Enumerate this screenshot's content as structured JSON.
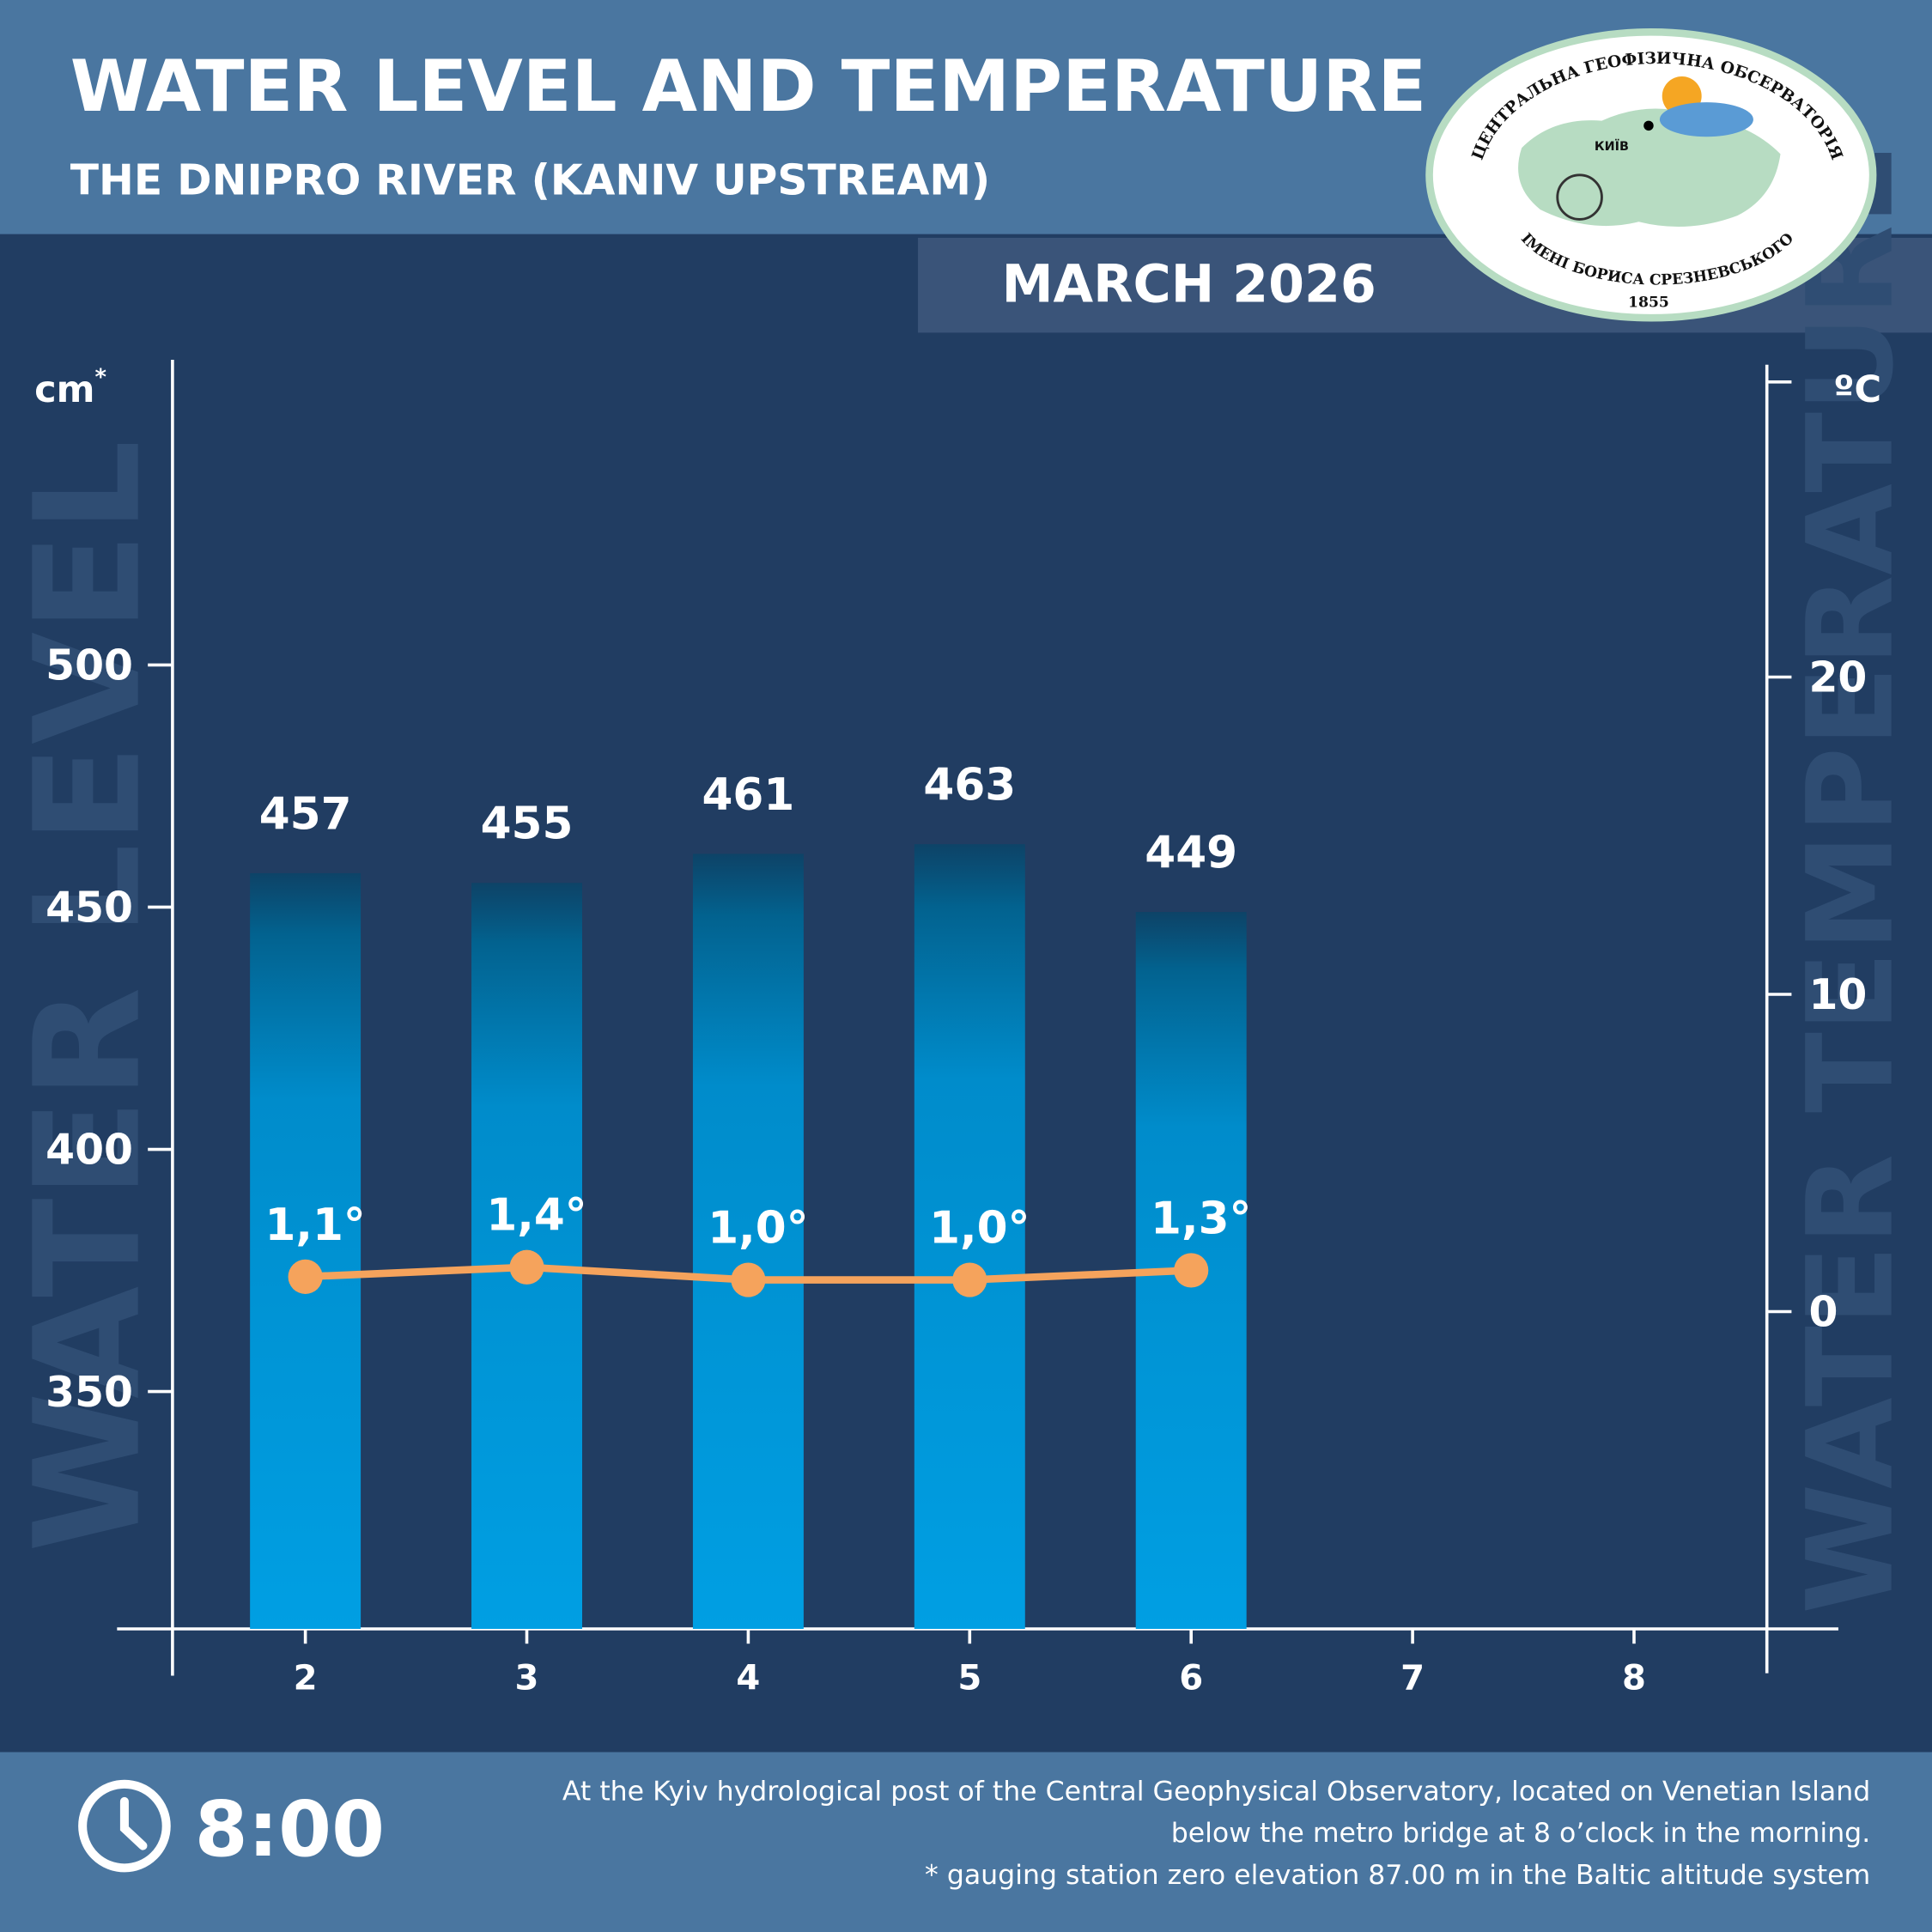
{
  "chart_data": {
    "type": "bar_line",
    "title": "WATER LEVEL AND TEMPERATURE",
    "subtitle": "THE DNIPRO RIVER (KANIV UPSTREAM)",
    "period": "MARCH 2026",
    "y_unit": "cm",
    "y_unit_note": "*",
    "y2_unit": "ºC",
    "y_axis_label": "WATER LEVEL",
    "y2_axis_label": "WATER TEMPERATURE",
    "x": [
      2,
      3,
      4,
      5,
      6,
      7,
      8
    ],
    "xlim": [
      1.4,
      8.6
    ],
    "xticks": [
      2,
      3,
      4,
      5,
      6,
      7,
      8
    ],
    "ylim": [
      301,
      563
    ],
    "yticks": [
      350,
      400,
      450,
      500
    ],
    "y2lim": [
      -10,
      30
    ],
    "y2ticks": [
      0,
      10,
      20
    ],
    "series": [
      {
        "name": "WATER LEVEL",
        "type": "bar",
        "color": "#009fe3",
        "values": [
          457,
          455,
          461,
          463,
          449,
          null,
          null
        ]
      },
      {
        "name": "WATER TEMPERATURE",
        "type": "line",
        "axis": "y2",
        "color": "#f5a35c",
        "values": [
          1.1,
          1.4,
          1.0,
          1.0,
          1.3,
          null,
          null
        ],
        "value_labels": [
          "1,1°",
          "1,4°",
          "1,0°",
          "1,0°",
          "1,3°",
          null,
          null
        ]
      }
    ],
    "time": "8:00",
    "notes": [
      "At the Kyiv hydrological post of the Central Geophysical Observatory, located on Venetian Island",
      "below the metro bridge  at 8 o’clock in the morning.",
      "* gauging station zero elevation 87.00 m in the Baltic altitude system"
    ],
    "logo": {
      "top_text": "ЦЕНТРАЛЬНА ГЕОФІЗИЧНА ОБСЕРВАТОРІЯ",
      "bottom_text": "ІМЕНІ БОРИСА СРЕЗНЕВСЬКОГО",
      "year": "1855",
      "city": "КИЇВ"
    }
  }
}
